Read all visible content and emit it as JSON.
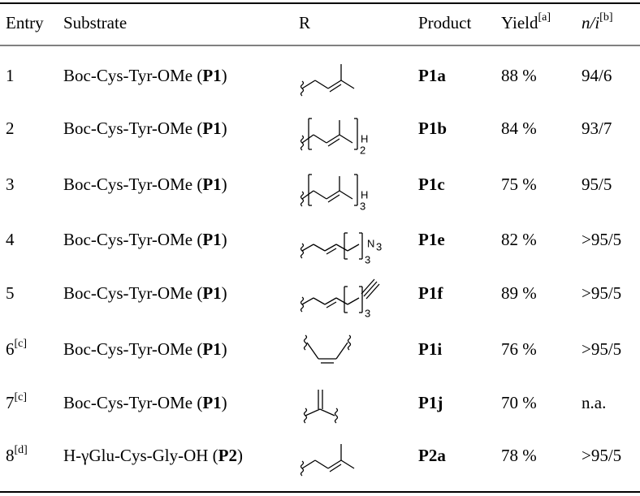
{
  "table": {
    "header": [
      {
        "text": "Entry"
      },
      {
        "text": "Substrate"
      },
      {
        "text": "R"
      },
      {
        "text": "Product"
      },
      {
        "text": "Yield",
        "sup": "[a]"
      },
      {
        "text": "n/i",
        "sup": "[b]"
      }
    ],
    "rows": [
      {
        "entry": "1",
        "substrate": "Boc-Cys-Tyr-OMe (",
        "code": "P1",
        "close": ")",
        "product": "P1a",
        "yield": "88 %",
        "ni": "94/6",
        "r_labels": []
      },
      {
        "entry": "2",
        "substrate": "Boc-Cys-Tyr-OMe (",
        "code": "P1",
        "close": ")",
        "product": "P1b",
        "yield": "84 %",
        "ni": "93/7",
        "r_labels": [
          "2",
          "H"
        ]
      },
      {
        "entry": "3",
        "substrate": "Boc-Cys-Tyr-OMe (",
        "code": "P1",
        "close": ")",
        "product": "P1c",
        "yield": "75 %",
        "ni": "95/5",
        "r_labels": [
          "3",
          "H"
        ]
      },
      {
        "entry": "4",
        "substrate": "Boc-Cys-Tyr-OMe (",
        "code": "P1",
        "close": ")",
        "product": "P1e",
        "yield": "82 %",
        "ni": ">95/5",
        "r_labels": [
          "3",
          "N",
          "3"
        ]
      },
      {
        "entry": "5",
        "substrate": "Boc-Cys-Tyr-OMe (",
        "code": "P1",
        "close": ")",
        "product": "P1f",
        "yield": "89 %",
        "ni": ">95/5",
        "r_labels": [
          "3"
        ]
      },
      {
        "entry": "6",
        "entry_sup": "[c]",
        "substrate": "Boc-Cys-Tyr-OMe (",
        "code": "P1",
        "close": ")",
        "product": "P1i",
        "yield": "76 %",
        "ni": ">95/5",
        "r_labels": []
      },
      {
        "entry": "7",
        "entry_sup": "[c]",
        "substrate": "Boc-Cys-Tyr-OMe (",
        "code": "P1",
        "close": ")",
        "product": "P1j",
        "yield": "70 %",
        "ni": "n.a.",
        "r_labels": []
      },
      {
        "entry": "8",
        "entry_sup": "[d]",
        "substrate": "H-γGlu-Cys-Gly-OH (",
        "code": "P2",
        "close": ")",
        "product": "P2a",
        "yield": "78 %",
        "ni": ">95/5",
        "r_labels": []
      }
    ]
  }
}
